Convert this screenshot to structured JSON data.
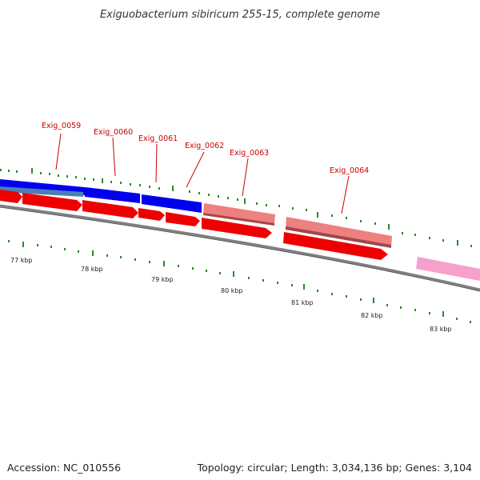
{
  "title": "Exiguobacterium sibiricum 255-15, complete genome",
  "footer": {
    "accession": "Accession: NC_010556",
    "topology": "Topology: circular; Length: 3,034,136 bp; Genes: 3,104"
  },
  "colors": {
    "backbone": "#808080",
    "tick": "#2a8a2a",
    "gene_label": "#cc0000",
    "cds_forward": "#0000ee",
    "cds_forward_light": "#4a7fb5",
    "cds_reverse": "#ee0000",
    "rna_salmon": "#ee8080",
    "rna_pink": "#f7a0cc"
  },
  "gene_labels": [
    "Exig_0059",
    "Exig_0060",
    "Exig_0061",
    "Exig_0062",
    "Exig_0063",
    "Exig_0064"
  ],
  "kbp_labels": [
    "77 kbp",
    "78 kbp",
    "79 kbp",
    "80 kbp",
    "81 kbp",
    "82 kbp",
    "83 kbp"
  ]
}
